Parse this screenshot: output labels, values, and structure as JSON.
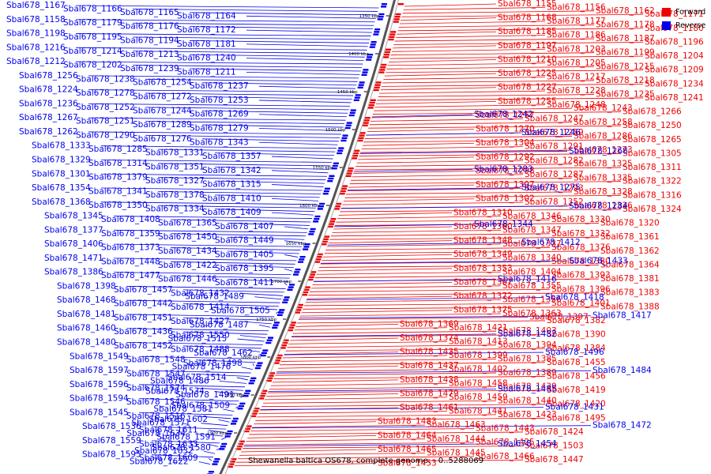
{
  "caption": "Shewanella baltica OS678, complete genome. - 0..5288069",
  "legend": [
    {
      "label": "Forward",
      "color": "#ee0000"
    },
    {
      "label": "Reverse",
      "color": "#0000ee"
    }
  ],
  "colors": {
    "forward": "#ee0000",
    "reverse": "#0000ee",
    "backbone": "#888888"
  },
  "ticks": [
    "1350 kbp",
    "1400 kbp",
    "1450 kbp",
    "1500 kbp",
    "1550 kbp",
    "1600 kbp",
    "1650 kbp",
    "1700 kbp",
    "1750 kbp",
    "1800 kbp",
    "1850 kbp",
    "1900 kbp"
  ],
  "forward_labels": [
    "Sbal678_1155",
    "Sbal678_1156",
    "Sbal678_1162",
    "Sbal678_1171",
    "Sbal678_1168",
    "Sbal678_1177",
    "Sbal678_1178",
    "Sbal678_1180",
    "Sbal678_1185",
    "Sbal678_1186",
    "Sbal678_1187",
    "Sbal678_1196",
    "Sbal678_1197",
    "Sbal678_1203",
    "Sbal678_1199",
    "Sbal678_1204",
    "Sbal678_1210",
    "Sbal678_1205",
    "Sbal678_1215",
    "Sbal678_1209",
    "Sbal678_1225",
    "Sbal678_1217",
    "Sbal678_1218",
    "Sbal678_1234",
    "Sbal678_1227",
    "Sbal678_1228",
    "Sbal678_1235",
    "Sbal678_1241",
    "Sbal678_1255",
    "Sbal678_1248",
    "Sbal678_1243",
    "Sbal678_1266",
    "Sbal678_1257",
    "Sbal678_1247",
    "Sbal678_1258",
    "Sbal678_1250",
    "Sbal678_1270",
    "Sbal678_1259",
    "Sbal678_1286",
    "Sbal678_1265",
    "Sbal678_1304",
    "Sbal678_1291",
    "Sbal678_1273",
    "Sbal678_1305",
    "Sbal678_1292",
    "Sbal678_1282",
    "Sbal678_1325",
    "Sbal678_1311",
    "Sbal678_1298",
    "Sbal678_1287",
    "Sbal678_1335",
    "Sbal678_1322",
    "Sbal678_1307",
    "Sbal678_1293",
    "Sbal678_1328",
    "Sbal678_1316",
    "Sbal678_1302",
    "Sbal678_1352",
    "Sbal678_1336",
    "Sbal678_1324",
    "Sbal678_1310",
    "Sbal678_1346",
    "Sbal678_1330",
    "Sbal678_1320",
    "Sbal678_1360",
    "Sbal678_1347",
    "Sbal678_1332",
    "Sbal678_1361",
    "Sbal678_1348",
    "Sbal678_1337",
    "Sbal678_1376",
    "Sbal678_1362",
    "Sbal678_1349",
    "Sbal678_1340",
    "Sbal678_1380",
    "Sbal678_1364",
    "Sbal678_1353",
    "Sbal678_1404",
    "Sbal678_1393",
    "Sbal678_1381",
    "Sbal678_1367",
    "Sbal678_1355",
    "Sbal678_1396",
    "Sbal678_1383",
    "Sbal678_1372",
    "Sbal678_1356",
    "Sbal678_1401",
    "Sbal678_1388",
    "Sbal678_1375",
    "Sbal678_1363",
    "Sbal678_1397",
    "Sbal678_1382",
    "Sbal678_1369",
    "Sbal678_1421",
    "Sbal678_1403",
    "Sbal678_1390",
    "Sbal678_1374",
    "Sbal678_1413",
    "Sbal678_1394",
    "Sbal678_1384",
    "Sbal678_1435",
    "Sbal678_1399",
    "Sbal678_1385",
    "Sbal678_1455",
    "Sbal678_1437",
    "Sbal678_1402",
    "Sbal678_1389",
    "Sbal678_1456",
    "Sbal678_1438",
    "Sbal678_1458",
    "Sbal678_1439",
    "Sbal678_1419",
    "Sbal678_1479",
    "Sbal678_1459",
    "Sbal678_1440",
    "Sbal678_1420",
    "Sbal678_1461",
    "Sbal678_1441",
    "Sbal678_1423",
    "Sbal678_1495",
    "Sbal678_1483",
    "Sbal678_1463",
    "Sbal678_1443",
    "Sbal678_1424",
    "Sbal678_1464",
    "Sbal678_1444",
    "Sbal678_1425",
    "Sbal678_1503",
    "Sbal678_1465",
    "Sbal678_1445",
    "Sbal678_1466",
    "Sbal678_1447",
    "Sbal678_1453"
  ],
  "reverse_right_labels": [
    "Sbal678_1242",
    "Sbal678_1246",
    "Sbal678_1268",
    "Sbal678_1283",
    "Sbal678_1275",
    "Sbal678_1284",
    "Sbal678_1344",
    "Sbal678_1412",
    "Sbal678_1433",
    "Sbal678_1416",
    "Sbal678_1418",
    "Sbal678_1417",
    "Sbal678_1482",
    "Sbal678_1496",
    "Sbal678_1484",
    "Sbal678_1485",
    "Sbal678_1431",
    "Sbal678_1472",
    "Sbal678_1454"
  ],
  "reverse_left_labels": [
    "Sbal678_1167",
    "Sbal678_1166",
    "Sbal678_1165",
    "Sbal678_1164",
    "Sbal678_1158",
    "Sbal678_1179",
    "Sbal678_1176",
    "Sbal678_1172",
    "Sbal678_1198",
    "Sbal678_1195",
    "Sbal678_1194",
    "Sbal678_1181",
    "Sbal678_1216",
    "Sbal678_1214",
    "Sbal678_1213",
    "Sbal678_1240",
    "Sbal678_1212",
    "Sbal678_1202",
    "Sbal678_1239",
    "Sbal678_1211",
    "Sbal678_1256",
    "Sbal678_1238",
    "Sbal678_1254",
    "Sbal678_1237",
    "Sbal678_1224",
    "Sbal678_1278",
    "Sbal678_1272",
    "Sbal678_1253",
    "Sbal678_1236",
    "Sbal678_1252",
    "Sbal678_1244",
    "Sbal678_1269",
    "Sbal678_1267",
    "Sbal678_1251",
    "Sbal678_1289",
    "Sbal678_1279",
    "Sbal678_1262",
    "Sbal678_1290",
    "Sbal678_1276",
    "Sbal678_1343",
    "Sbal678_1333",
    "Sbal678_1285",
    "Sbal678_1331",
    "Sbal678_1357",
    "Sbal678_1329",
    "Sbal678_1314",
    "Sbal678_1351",
    "Sbal678_1342",
    "Sbal678_1301",
    "Sbal678_1379",
    "Sbal678_1327",
    "Sbal678_1315",
    "Sbal678_1354",
    "Sbal678_1341",
    "Sbal678_1378",
    "Sbal678_1410",
    "Sbal678_1368",
    "Sbal678_1350",
    "Sbal678_1334",
    "Sbal678_1409",
    "Sbal678_1345",
    "Sbal678_1408",
    "Sbal678_1365",
    "Sbal678_1407",
    "Sbal678_1377",
    "Sbal678_1359",
    "Sbal678_1450",
    "Sbal678_1449",
    "Sbal678_1406",
    "Sbal678_1373",
    "Sbal678_1434",
    "Sbal678_1405",
    "Sbal678_1471",
    "Sbal678_1448",
    "Sbal678_1422",
    "Sbal678_1395",
    "Sbal678_1386",
    "Sbal678_1477",
    "Sbal678_1446",
    "Sbal678_1411",
    "Sbal678_1398",
    "Sbal678_1457",
    "Sbal678_1432",
    "Sbal678_1489",
    "Sbal678_1468",
    "Sbal678_1442",
    "Sbal678_1414",
    "Sbal678_1505",
    "Sbal678_1481",
    "Sbal678_1451",
    "Sbal678_1427",
    "Sbal678_1487",
    "Sbal678_1460",
    "Sbal678_1436",
    "Sbal678_1550",
    "Sbal678_1515",
    "Sbal678_1480",
    "Sbal678_1452",
    "Sbal678_1488",
    "Sbal678_1462",
    "Sbal678_1549",
    "Sbal678_1548",
    "Sbal678_1498",
    "Sbal678_1476",
    "Sbal678_1597",
    "Sbal678_1547",
    "Sbal678_1514",
    "Sbal678_1486",
    "Sbal678_1596",
    "Sbal678_1574",
    "Sbal678_1534",
    "Sbal678_1491",
    "Sbal678_1594",
    "Sbal678_1546",
    "Sbal678_1509",
    "Sbal678_1581",
    "Sbal678_1545",
    "Sbal678_1516",
    "Sbal678_1602",
    "Sbal678_1571",
    "Sbal678_1536",
    "Sbal678_1611",
    "Sbal678_1634",
    "Sbal678_1591",
    "Sbal678_1559",
    "Sbal678_1633",
    "Sbal678_1580",
    "Sbal678_1632",
    "Sbal678_1595",
    "Sbal678_1609",
    "Sbal678_1622"
  ]
}
